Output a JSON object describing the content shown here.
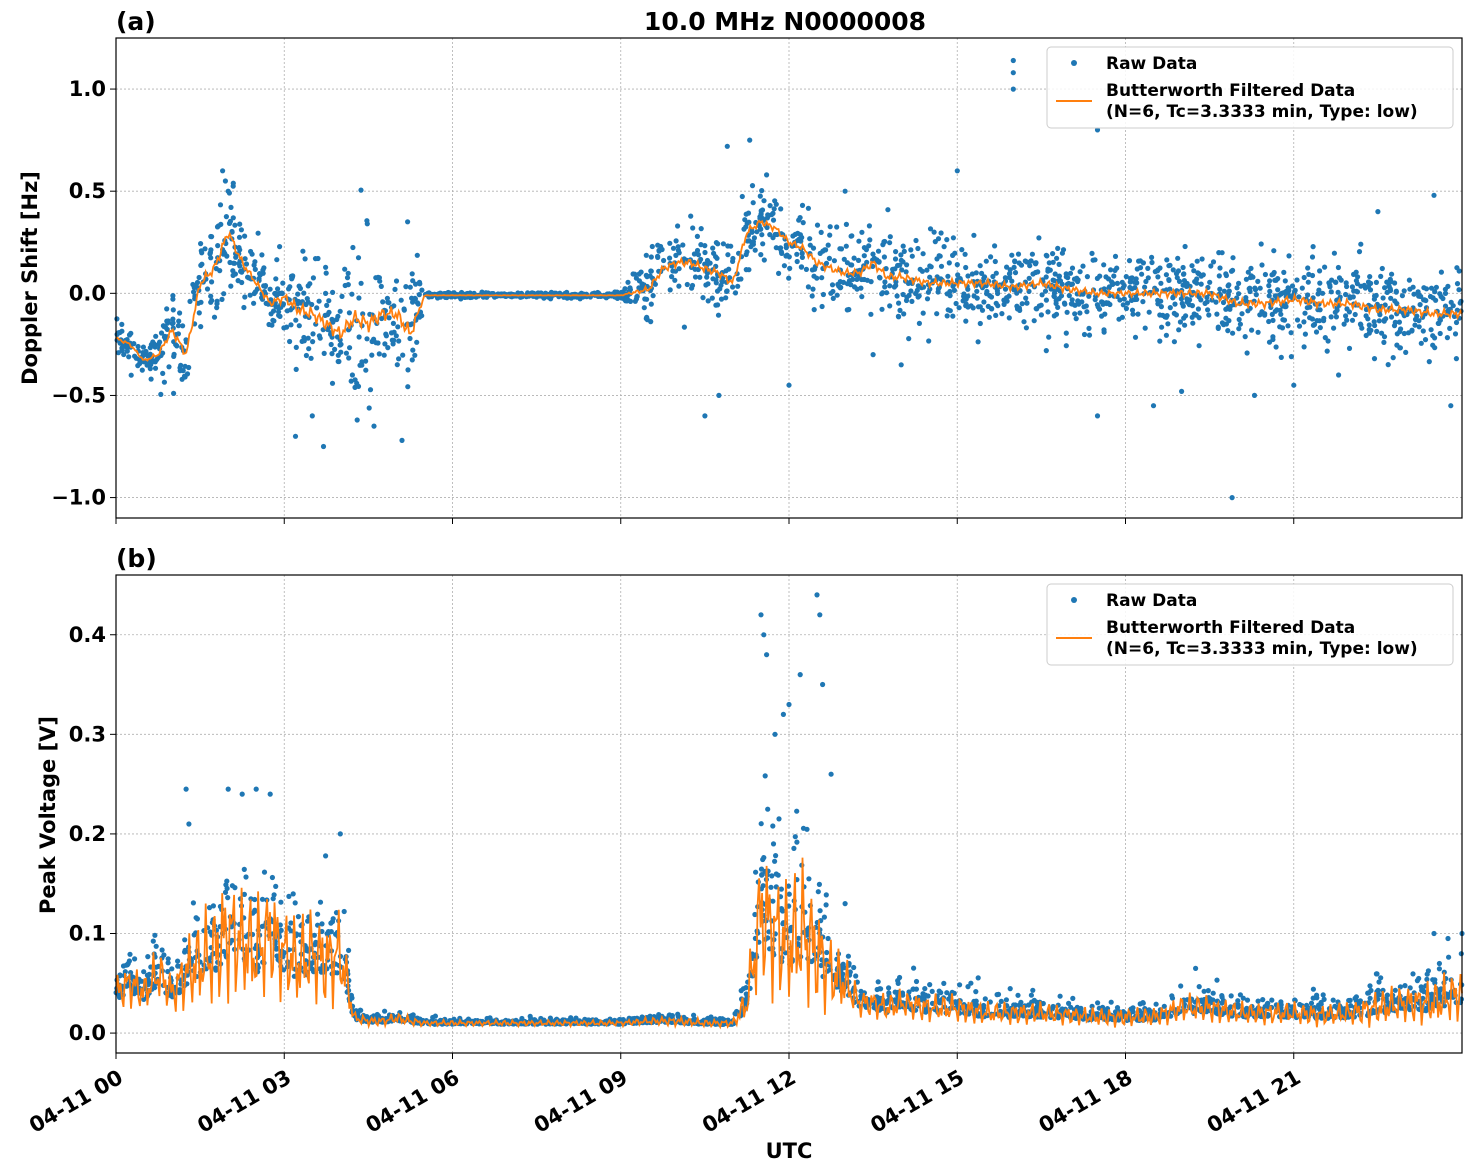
{
  "figure": {
    "title": "10.0 MHz N0000008",
    "xlabel": "UTC",
    "x_ticks": [
      "04-11 00",
      "04-11 03",
      "04-11 06",
      "04-11 09",
      "04-11 12",
      "04-11 15",
      "04-11 18",
      "04-11 21"
    ],
    "colors": {
      "raw": "#1f77b4",
      "filtered": "#ff7f0e",
      "grid": "#b0b0b0"
    },
    "legend": {
      "raw_label": "Raw Data",
      "filtered_label_line1": "Butterworth Filtered Data",
      "filtered_label_line2": "(N=6, Tc=3.3333 min, Type: low)",
      "placement": "top-right"
    }
  },
  "chart_data": [
    {
      "panel": "(a)",
      "type": "scatter",
      "ylabel": "Doppler Shift [Hz]",
      "xlim_hours": [
        0,
        24
      ],
      "ylim": [
        -1.1,
        1.25
      ],
      "y_ticks": [
        -1.0,
        -0.5,
        0.0,
        0.5,
        1.0
      ],
      "y_tick_labels": [
        "−1.0",
        "−0.5",
        "0.0",
        "0.5",
        "1.0"
      ],
      "grid": true,
      "series": [
        {
          "name": "Raw Data",
          "style": "points",
          "x_hours": [
            0.0,
            0.25,
            0.5,
            0.75,
            1.0,
            1.25,
            1.5,
            1.75,
            2.0,
            2.25,
            2.5,
            2.75,
            3.0,
            3.25,
            3.5,
            3.75,
            4.0,
            4.25,
            4.5,
            4.75,
            5.0,
            5.25,
            5.5,
            6.0,
            7.0,
            8.0,
            9.0,
            9.5,
            9.75,
            10.0,
            10.25,
            10.5,
            10.75,
            11.0,
            11.25,
            11.5,
            11.75,
            12.0,
            12.25,
            12.5,
            12.75,
            13.0,
            13.25,
            13.5,
            13.75,
            14.0,
            14.5,
            15.0,
            15.5,
            16.0,
            16.5,
            17.0,
            17.5,
            18.0,
            18.5,
            19.0,
            19.5,
            20.0,
            20.5,
            21.0,
            21.5,
            22.0,
            22.5,
            23.0,
            23.5,
            24.0
          ],
          "y_center": [
            -0.22,
            -0.25,
            -0.33,
            -0.3,
            -0.18,
            -0.3,
            0.05,
            0.12,
            0.3,
            0.15,
            0.05,
            -0.05,
            -0.02,
            -0.08,
            -0.1,
            -0.15,
            -0.2,
            -0.12,
            -0.15,
            -0.1,
            -0.1,
            -0.2,
            -0.01,
            -0.01,
            -0.01,
            -0.01,
            -0.01,
            0.02,
            0.12,
            0.15,
            0.15,
            0.12,
            0.1,
            0.05,
            0.3,
            0.35,
            0.32,
            0.25,
            0.22,
            0.15,
            0.12,
            0.1,
            0.1,
            0.15,
            0.08,
            0.08,
            0.05,
            0.05,
            0.05,
            0.03,
            0.05,
            0.02,
            0.0,
            0.0,
            0.0,
            0.0,
            0.0,
            -0.05,
            -0.05,
            -0.03,
            -0.05,
            -0.05,
            -0.08,
            -0.08,
            -0.1,
            -0.1
          ],
          "y_spread": [
            0.05,
            0.06,
            0.05,
            0.08,
            0.15,
            0.15,
            0.18,
            0.18,
            0.2,
            0.15,
            0.12,
            0.12,
            0.18,
            0.22,
            0.25,
            0.25,
            0.25,
            0.28,
            0.3,
            0.25,
            0.25,
            0.3,
            0.01,
            0.01,
            0.01,
            0.01,
            0.01,
            0.12,
            0.14,
            0.15,
            0.15,
            0.14,
            0.14,
            0.14,
            0.14,
            0.12,
            0.12,
            0.12,
            0.12,
            0.14,
            0.14,
            0.14,
            0.14,
            0.15,
            0.15,
            0.15,
            0.14,
            0.14,
            0.14,
            0.14,
            0.14,
            0.14,
            0.12,
            0.12,
            0.14,
            0.14,
            0.14,
            0.15,
            0.15,
            0.15,
            0.15,
            0.15,
            0.15,
            0.15,
            0.15,
            0.15
          ],
          "outliers_hours": [
            16.0,
            16.0,
            16.0,
            1.9,
            1.95,
            2.0,
            3.2,
            3.5,
            3.7,
            4.3,
            4.6,
            5.1,
            5.2,
            10.5,
            10.75,
            10.9,
            11.3,
            11.6,
            12.0,
            13.0,
            13.5,
            14.0,
            15.0,
            17.5,
            17.5,
            18.5,
            19.0,
            19.9,
            20.3,
            21.0,
            21.8,
            22.5,
            23.5,
            23.8
          ],
          "outliers_y": [
            1.14,
            1.08,
            1.0,
            0.6,
            0.55,
            0.5,
            -0.7,
            -0.6,
            -0.75,
            -0.62,
            -0.65,
            -0.72,
            0.35,
            -0.6,
            -0.5,
            0.72,
            0.75,
            0.58,
            -0.45,
            0.5,
            -0.3,
            -0.35,
            0.6,
            0.8,
            -0.6,
            -0.55,
            -0.48,
            -1.0,
            -0.5,
            -0.45,
            -0.4,
            0.4,
            0.48,
            -0.55
          ]
        },
        {
          "name": "Butterworth Filtered Data\n(N=6, Tc=3.3333 min, Type: low)",
          "style": "line",
          "x_hours": [
            0.0,
            0.25,
            0.5,
            0.75,
            1.0,
            1.25,
            1.5,
            1.75,
            2.0,
            2.25,
            2.5,
            2.75,
            3.0,
            3.25,
            3.5,
            3.75,
            4.0,
            4.25,
            4.5,
            4.75,
            5.0,
            5.25,
            5.5,
            6.0,
            7.0,
            8.0,
            9.0,
            9.5,
            9.75,
            10.0,
            10.25,
            10.5,
            10.75,
            11.0,
            11.25,
            11.5,
            11.75,
            12.0,
            12.25,
            12.5,
            12.75,
            13.0,
            13.25,
            13.5,
            13.75,
            14.0,
            14.5,
            15.0,
            15.5,
            16.0,
            16.5,
            17.0,
            17.5,
            18.0,
            18.5,
            19.0,
            19.5,
            20.0,
            20.5,
            21.0,
            21.5,
            22.0,
            22.5,
            23.0,
            23.5,
            24.0
          ],
          "y": [
            -0.22,
            -0.25,
            -0.33,
            -0.3,
            -0.18,
            -0.3,
            0.05,
            0.12,
            0.3,
            0.15,
            0.05,
            -0.05,
            -0.02,
            -0.08,
            -0.1,
            -0.15,
            -0.2,
            -0.12,
            -0.15,
            -0.1,
            -0.1,
            -0.2,
            -0.01,
            -0.01,
            -0.01,
            -0.01,
            -0.01,
            0.02,
            0.12,
            0.15,
            0.15,
            0.12,
            0.1,
            0.05,
            0.3,
            0.35,
            0.32,
            0.25,
            0.22,
            0.15,
            0.12,
            0.1,
            0.1,
            0.15,
            0.08,
            0.08,
            0.05,
            0.05,
            0.05,
            0.03,
            0.05,
            0.02,
            0.0,
            0.0,
            0.0,
            0.0,
            0.0,
            -0.05,
            -0.05,
            -0.03,
            -0.05,
            -0.05,
            -0.08,
            -0.08,
            -0.1,
            -0.1
          ]
        }
      ]
    },
    {
      "panel": "(b)",
      "type": "scatter",
      "ylabel": "Peak Voltage [V]",
      "xlim_hours": [
        0,
        24
      ],
      "ylim": [
        -0.02,
        0.46
      ],
      "y_ticks": [
        0.0,
        0.1,
        0.2,
        0.3,
        0.4
      ],
      "y_tick_labels": [
        "0.0",
        "0.1",
        "0.2",
        "0.3",
        "0.4"
      ],
      "grid": true,
      "series": [
        {
          "name": "Raw Data",
          "style": "points",
          "x_hours": [
            0.0,
            0.25,
            0.5,
            0.75,
            1.0,
            1.25,
            1.5,
            1.75,
            2.0,
            2.25,
            2.5,
            2.75,
            3.0,
            3.25,
            3.5,
            3.75,
            4.0,
            4.25,
            4.5,
            4.75,
            5.0,
            5.25,
            5.5,
            6.0,
            7.0,
            8.0,
            9.0,
            9.5,
            10.0,
            10.5,
            11.0,
            11.25,
            11.5,
            11.75,
            12.0,
            12.25,
            12.5,
            12.75,
            13.0,
            13.25,
            13.5,
            13.75,
            14.0,
            14.5,
            15.0,
            15.5,
            16.0,
            16.5,
            17.0,
            17.5,
            18.0,
            18.5,
            19.0,
            19.5,
            20.0,
            20.5,
            21.0,
            21.5,
            22.0,
            22.5,
            23.0,
            23.5,
            24.0
          ],
          "y_center": [
            0.04,
            0.05,
            0.04,
            0.06,
            0.04,
            0.06,
            0.07,
            0.08,
            0.1,
            0.09,
            0.08,
            0.1,
            0.08,
            0.07,
            0.08,
            0.07,
            0.08,
            0.015,
            0.012,
            0.012,
            0.015,
            0.012,
            0.01,
            0.01,
            0.01,
            0.01,
            0.01,
            0.012,
            0.012,
            0.01,
            0.01,
            0.03,
            0.12,
            0.1,
            0.09,
            0.1,
            0.08,
            0.06,
            0.05,
            0.03,
            0.03,
            0.025,
            0.03,
            0.025,
            0.025,
            0.02,
            0.02,
            0.02,
            0.018,
            0.016,
            0.016,
            0.016,
            0.025,
            0.025,
            0.02,
            0.02,
            0.02,
            0.018,
            0.02,
            0.025,
            0.03,
            0.03,
            0.04
          ],
          "y_spread": [
            0.02,
            0.025,
            0.02,
            0.03,
            0.02,
            0.04,
            0.05,
            0.06,
            0.07,
            0.06,
            0.06,
            0.06,
            0.05,
            0.05,
            0.05,
            0.05,
            0.05,
            0.006,
            0.005,
            0.005,
            0.006,
            0.005,
            0.003,
            0.003,
            0.003,
            0.003,
            0.003,
            0.004,
            0.005,
            0.004,
            0.004,
            0.02,
            0.08,
            0.07,
            0.07,
            0.08,
            0.06,
            0.04,
            0.03,
            0.015,
            0.015,
            0.015,
            0.015,
            0.015,
            0.015,
            0.012,
            0.012,
            0.012,
            0.01,
            0.01,
            0.01,
            0.01,
            0.015,
            0.015,
            0.012,
            0.012,
            0.012,
            0.012,
            0.012,
            0.02,
            0.02,
            0.025,
            0.03
          ],
          "outliers_hours": [
            1.25,
            1.3,
            2.0,
            2.25,
            2.5,
            2.75,
            4.0,
            11.5,
            11.55,
            11.6,
            11.75,
            11.9,
            12.0,
            12.2,
            12.5,
            12.55,
            12.6,
            12.75,
            13.0,
            19.25,
            23.5,
            23.75,
            24.0
          ],
          "outliers_y": [
            0.245,
            0.21,
            0.245,
            0.24,
            0.245,
            0.24,
            0.2,
            0.42,
            0.4,
            0.38,
            0.3,
            0.32,
            0.33,
            0.36,
            0.44,
            0.42,
            0.35,
            0.26,
            0.13,
            0.065,
            0.1,
            0.095,
            0.1
          ]
        },
        {
          "name": "Butterworth Filtered Data\n(N=6, Tc=3.3333 min, Type: low)",
          "style": "line",
          "x_hours": [
            0.0,
            0.25,
            0.5,
            0.75,
            1.0,
            1.25,
            1.5,
            1.75,
            2.0,
            2.25,
            2.5,
            2.75,
            3.0,
            3.25,
            3.5,
            3.75,
            4.0,
            4.25,
            4.5,
            4.75,
            5.0,
            5.25,
            5.5,
            6.0,
            7.0,
            8.0,
            9.0,
            9.5,
            10.0,
            10.5,
            11.0,
            11.25,
            11.5,
            11.75,
            12.0,
            12.25,
            12.5,
            12.75,
            13.0,
            13.25,
            13.5,
            13.75,
            14.0,
            14.5,
            15.0,
            15.5,
            16.0,
            16.5,
            17.0,
            17.5,
            18.0,
            18.5,
            19.0,
            19.5,
            20.0,
            20.5,
            21.0,
            21.5,
            22.0,
            22.5,
            23.0,
            23.5,
            24.0
          ],
          "y": [
            0.04,
            0.05,
            0.04,
            0.06,
            0.04,
            0.06,
            0.07,
            0.08,
            0.1,
            0.09,
            0.08,
            0.1,
            0.08,
            0.07,
            0.08,
            0.07,
            0.08,
            0.015,
            0.012,
            0.012,
            0.015,
            0.012,
            0.01,
            0.01,
            0.01,
            0.01,
            0.01,
            0.012,
            0.012,
            0.01,
            0.01,
            0.03,
            0.12,
            0.1,
            0.09,
            0.1,
            0.08,
            0.06,
            0.05,
            0.03,
            0.03,
            0.025,
            0.03,
            0.025,
            0.025,
            0.02,
            0.02,
            0.02,
            0.018,
            0.016,
            0.016,
            0.016,
            0.025,
            0.025,
            0.02,
            0.02,
            0.02,
            0.018,
            0.02,
            0.025,
            0.03,
            0.03,
            0.04
          ]
        }
      ]
    }
  ]
}
